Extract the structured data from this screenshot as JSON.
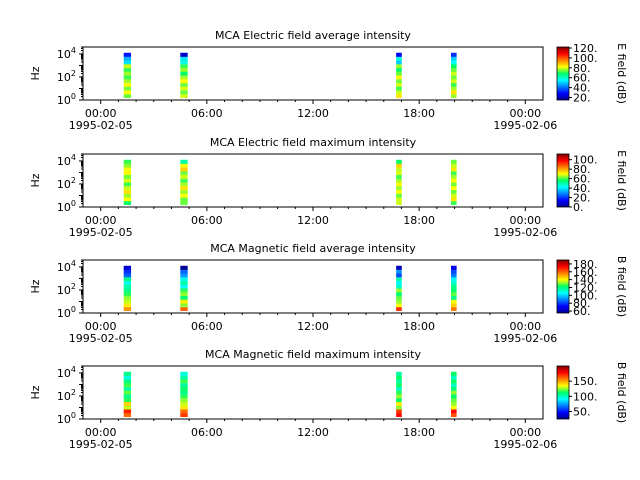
{
  "chart_data": [
    {
      "type": "heatmap",
      "title": "MCA  Electric field average intensity",
      "ylabel": "Hz",
      "yscale": "log",
      "ylim": [
        1,
        40000
      ],
      "yticks": [
        "10^0",
        "10^2",
        "10^4"
      ],
      "xticks": [
        "00:00\n1995-02-05",
        "06:00",
        "12:00",
        "18:00",
        "00:00\n1995-02-06"
      ],
      "xlim_hours": [
        -1,
        25
      ],
      "colorbar": {
        "label": "E field (dB)",
        "range": [
          15,
          122
        ],
        "ticks": [
          "20.",
          "40.",
          "60.",
          "80.",
          "100.",
          "120."
        ]
      },
      "segments": [
        {
          "start_hour": 1.3,
          "end_hour": 1.7,
          "profile": "E-avg"
        },
        {
          "start_hour": 4.5,
          "end_hour": 4.9,
          "profile": "E-avg"
        },
        {
          "start_hour": 16.7,
          "end_hour": 17.0,
          "profile": "E-avg"
        },
        {
          "start_hour": 19.8,
          "end_hour": 20.1,
          "profile": "E-avg"
        }
      ]
    },
    {
      "type": "heatmap",
      "title": "MCA  Electric field maximum intensity",
      "ylabel": "Hz",
      "yscale": "log",
      "ylim": [
        1,
        40000
      ],
      "yticks": [
        "10^0",
        "10^2",
        "10^4"
      ],
      "xticks": [
        "00:00\n1995-02-05",
        "06:00",
        "12:00",
        "18:00",
        "00:00\n1995-02-06"
      ],
      "xlim_hours": [
        -1,
        25
      ],
      "colorbar": {
        "label": "E field (dB)",
        "range": [
          0,
          112
        ],
        "ticks": [
          "0.",
          "20.",
          "40.",
          "60.",
          "80.",
          "100."
        ]
      },
      "segments": [
        {
          "start_hour": 1.3,
          "end_hour": 1.7,
          "profile": "E-max"
        },
        {
          "start_hour": 4.5,
          "end_hour": 4.9,
          "profile": "E-max"
        },
        {
          "start_hour": 16.7,
          "end_hour": 17.0,
          "profile": "E-max"
        },
        {
          "start_hour": 19.8,
          "end_hour": 20.1,
          "profile": "E-max"
        }
      ]
    },
    {
      "type": "heatmap",
      "title": "MCA  Magnetic field average intensity",
      "ylabel": "Hz",
      "yscale": "log",
      "ylim": [
        1,
        40000
      ],
      "yticks": [
        "10^0",
        "10^2",
        "10^4"
      ],
      "xticks": [
        "00:00\n1995-02-05",
        "06:00",
        "12:00",
        "18:00",
        "00:00\n1995-02-06"
      ],
      "xlim_hours": [
        -1,
        25
      ],
      "colorbar": {
        "label": "B field (dB)",
        "range": [
          55,
          190
        ],
        "ticks": [
          "60.",
          "80.",
          "100.",
          "120.",
          "140.",
          "160.",
          "180."
        ]
      },
      "segments": [
        {
          "start_hour": 1.3,
          "end_hour": 1.7,
          "profile": "B-avg"
        },
        {
          "start_hour": 4.5,
          "end_hour": 4.9,
          "profile": "B-avg"
        },
        {
          "start_hour": 16.7,
          "end_hour": 17.0,
          "profile": "B-avg"
        },
        {
          "start_hour": 19.8,
          "end_hour": 20.1,
          "profile": "B-avg"
        }
      ]
    },
    {
      "type": "heatmap",
      "title": "MCA  Magnetic field maximum intensity",
      "ylabel": "Hz",
      "yscale": "log",
      "ylim": [
        1,
        40000
      ],
      "yticks": [
        "10^0",
        "10^2",
        "10^4"
      ],
      "xticks": [
        "00:00\n1995-02-05",
        "06:00",
        "12:00",
        "18:00",
        "00:00\n1995-02-06"
      ],
      "xlim_hours": [
        -1,
        25
      ],
      "colorbar": {
        "label": "B field (dB)",
        "range": [
          25,
          200
        ],
        "ticks": [
          "50.",
          "100.",
          "150."
        ]
      },
      "segments": [
        {
          "start_hour": 1.3,
          "end_hour": 1.7,
          "profile": "B-max"
        },
        {
          "start_hour": 4.5,
          "end_hour": 4.9,
          "profile": "B-max"
        },
        {
          "start_hour": 16.7,
          "end_hour": 17.0,
          "profile": "B-max"
        },
        {
          "start_hour": 19.8,
          "end_hour": 20.1,
          "profile": "B-max"
        }
      ]
    }
  ]
}
